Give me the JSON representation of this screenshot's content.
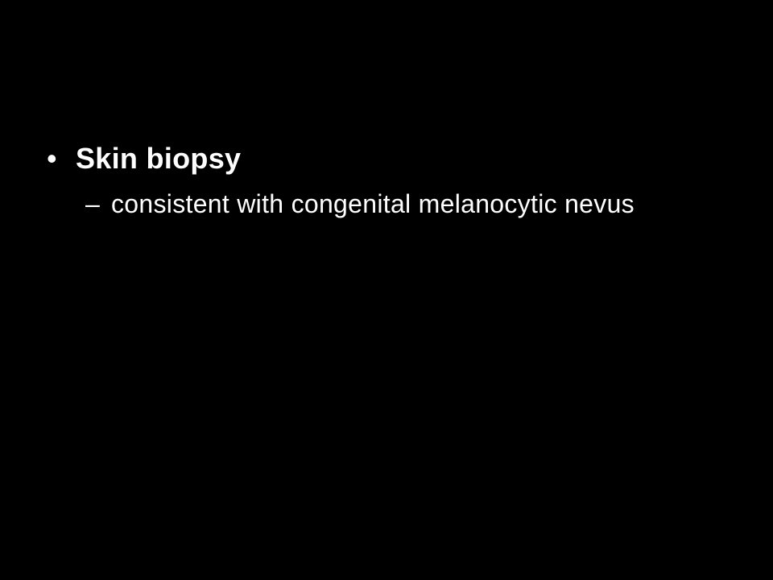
{
  "slide": {
    "bullet": {
      "marker": "•",
      "text": "Skin biopsy"
    },
    "sub_bullet": {
      "marker": "–",
      "text": "consistent with congenital melanocytic nevus"
    }
  },
  "colors": {
    "background": "#000000",
    "text": "#ffffff"
  }
}
